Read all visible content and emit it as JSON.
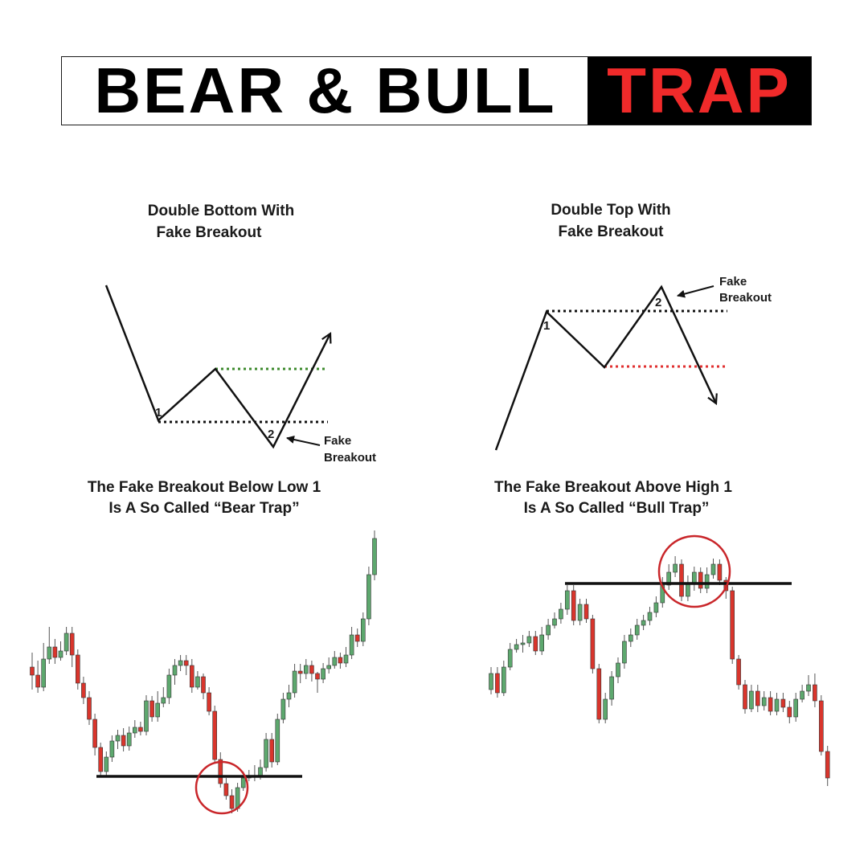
{
  "banner": {
    "part1": "BEAR & BULL",
    "part2": "TRAP"
  },
  "left_panel": {
    "title_line1": "Double Bottom With",
    "title_line2": "Fake Breakout",
    "point1": "1",
    "point2": "2",
    "annotation_line1": "Fake",
    "annotation_line2": "Breakout",
    "caption_line1": "The Fake Breakout Below Low 1",
    "caption_line2": "Is A So Called “Bear Trap”"
  },
  "right_panel": {
    "title_line1": "Double Top With",
    "title_line2": "Fake Breakout",
    "point1": "1",
    "point2": "2",
    "annotation_line1": "Fake",
    "annotation_line2": "Breakout",
    "caption_line1": "The Fake Breakout Above High 1",
    "caption_line2": "Is A So Called “Bull Trap”"
  },
  "colors": {
    "bull": "#5da86e",
    "bear": "#d9352c",
    "line": "#111111",
    "resistance_dots": "#3c8a2c",
    "support_dots": "#e03030",
    "circle": "#c9262a"
  },
  "candles": {
    "bear_trap": [
      [
        830,
        840,
        812,
        858
      ],
      [
        840,
        855,
        822,
        862
      ],
      [
        855,
        820,
        800,
        860
      ],
      [
        820,
        805,
        780,
        826
      ],
      [
        805,
        818,
        795,
        826
      ],
      [
        818,
        810,
        798,
        822
      ],
      [
        810,
        788,
        780,
        815
      ],
      [
        788,
        815,
        780,
        830
      ],
      [
        815,
        850,
        808,
        858
      ],
      [
        850,
        868,
        842,
        876
      ],
      [
        868,
        895,
        860,
        902
      ],
      [
        895,
        930,
        888,
        940
      ],
      [
        930,
        960,
        924,
        965
      ],
      [
        960,
        942,
        935,
        966
      ],
      [
        942,
        922,
        915,
        948
      ],
      [
        922,
        915,
        908,
        932
      ],
      [
        915,
        928,
        906,
        935
      ],
      [
        928,
        912,
        904,
        934
      ],
      [
        912,
        905,
        896,
        918
      ],
      [
        905,
        910,
        898,
        915
      ],
      [
        910,
        872,
        865,
        915
      ],
      [
        872,
        892,
        866,
        898
      ],
      [
        892,
        875,
        860,
        898
      ],
      [
        875,
        868,
        855,
        880
      ],
      [
        868,
        840,
        832,
        876
      ],
      [
        840,
        828,
        820,
        852
      ],
      [
        828,
        822,
        815,
        835
      ],
      [
        822,
        828,
        815,
        840
      ],
      [
        828,
        855,
        820,
        862
      ],
      [
        855,
        842,
        835,
        858
      ],
      [
        842,
        862,
        838,
        870
      ],
      [
        862,
        885,
        855,
        890
      ],
      [
        885,
        945,
        878,
        950
      ],
      [
        945,
        975,
        936,
        980
      ],
      [
        975,
        990,
        968,
        995
      ],
      [
        990,
        1006,
        982,
        1012
      ],
      [
        1006,
        980,
        974,
        1010
      ],
      [
        980,
        968,
        960,
        984
      ],
      [
        968,
        965,
        958,
        972
      ],
      [
        965,
        965,
        952,
        972
      ],
      [
        965,
        955,
        945,
        970
      ],
      [
        955,
        920,
        912,
        960
      ],
      [
        920,
        948,
        912,
        955
      ],
      [
        948,
        895,
        888,
        952
      ],
      [
        895,
        870,
        862,
        900
      ],
      [
        870,
        862,
        852,
        880
      ],
      [
        862,
        835,
        826,
        868
      ],
      [
        835,
        838,
        826,
        850
      ],
      [
        838,
        828,
        820,
        845
      ],
      [
        828,
        838,
        822,
        848
      ],
      [
        838,
        845,
        836,
        862
      ],
      [
        845,
        832,
        825,
        850
      ],
      [
        832,
        828,
        818,
        838
      ],
      [
        828,
        818,
        810,
        832
      ],
      [
        818,
        825,
        812,
        832
      ],
      [
        825,
        815,
        805,
        830
      ],
      [
        815,
        790,
        780,
        820
      ],
      [
        790,
        798,
        782,
        805
      ],
      [
        798,
        770,
        762,
        804
      ],
      [
        770,
        715,
        705,
        778
      ],
      [
        715,
        670,
        660,
        722
      ]
    ],
    "bull_trap": [
      [
        858,
        838,
        830,
        864
      ],
      [
        838,
        862,
        830,
        868
      ],
      [
        862,
        830,
        822,
        866
      ],
      [
        830,
        808,
        800,
        834
      ],
      [
        808,
        802,
        795,
        812
      ],
      [
        802,
        800,
        790,
        812
      ],
      [
        800,
        792,
        785,
        805
      ],
      [
        792,
        810,
        785,
        815
      ],
      [
        810,
        790,
        780,
        815
      ],
      [
        790,
        778,
        770,
        796
      ],
      [
        778,
        770,
        762,
        782
      ],
      [
        770,
        758,
        750,
        776
      ],
      [
        758,
        735,
        728,
        765
      ],
      [
        735,
        772,
        728,
        778
      ],
      [
        772,
        752,
        745,
        778
      ],
      [
        752,
        770,
        745,
        775
      ],
      [
        770,
        832,
        765,
        838
      ],
      [
        832,
        895,
        826,
        900
      ],
      [
        895,
        870,
        862,
        900
      ],
      [
        870,
        842,
        835,
        878
      ],
      [
        842,
        825,
        818,
        850
      ],
      [
        825,
        798,
        790,
        832
      ],
      [
        798,
        790,
        782,
        805
      ],
      [
        790,
        778,
        770,
        796
      ],
      [
        778,
        772,
        765,
        784
      ],
      [
        772,
        762,
        755,
        778
      ],
      [
        762,
        750,
        742,
        768
      ],
      [
        750,
        728,
        718,
        756
      ],
      [
        728,
        712,
        702,
        734
      ],
      [
        712,
        702,
        692,
        718
      ],
      [
        702,
        742,
        696,
        748
      ],
      [
        742,
        725,
        716,
        748
      ],
      [
        725,
        712,
        705,
        735
      ],
      [
        712,
        732,
        706,
        738
      ],
      [
        732,
        715,
        706,
        738
      ],
      [
        715,
        702,
        695,
        720
      ],
      [
        702,
        722,
        696,
        728
      ],
      [
        722,
        735,
        718,
        745
      ],
      [
        735,
        820,
        730,
        826
      ],
      [
        820,
        852,
        815,
        858
      ],
      [
        852,
        882,
        846,
        888
      ],
      [
        882,
        860,
        852,
        886
      ],
      [
        860,
        878,
        852,
        886
      ],
      [
        878,
        868,
        860,
        884
      ],
      [
        868,
        885,
        860,
        890
      ],
      [
        885,
        870,
        862,
        890
      ],
      [
        870,
        880,
        862,
        886
      ],
      [
        880,
        892,
        872,
        900
      ],
      [
        892,
        870,
        862,
        898
      ],
      [
        870,
        860,
        852,
        874
      ],
      [
        860,
        852,
        840,
        866
      ],
      [
        852,
        872,
        838,
        880
      ],
      [
        872,
        935,
        865,
        940
      ],
      [
        935,
        968,
        928,
        978
      ]
    ]
  }
}
